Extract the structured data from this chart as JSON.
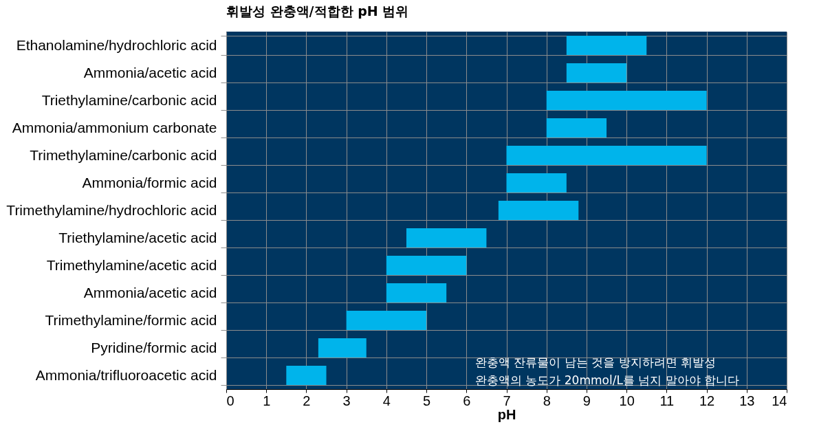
{
  "chart_data": {
    "type": "bar",
    "orientation": "horizontal",
    "title": "휘발성 완충액/적합한 pH 범위",
    "xlabel": "pH",
    "categories": [
      "Ethanolamine/hydrochloric acid",
      "Ammonia/acetic acid",
      "Triethylamine/carbonic acid",
      "Ammonia/ammonium carbonate",
      "Trimethylamine/carbonic acid",
      "Ammonia/formic acid",
      "Trimethylamine/hydrochloric acid",
      "Triethylamine/acetic acid",
      "Trimethylamine/acetic acid",
      "Ammonia/acetic acid ",
      "Trimethylamine/formic acid",
      "Pyridine/formic acid",
      "Ammonia/trifluoroacetic acid"
    ],
    "base": [
      8.5,
      8.5,
      8,
      8,
      7,
      7,
      6.8,
      4.5,
      4,
      4,
      3,
      2.3,
      1.5
    ],
    "values": [
      2,
      1.5,
      4,
      1.5,
      5,
      1.5,
      2,
      2,
      2,
      1.5,
      2,
      1.2,
      1
    ],
    "color": "#00b4eb",
    "xlim": [
      0,
      14
    ],
    "xticks": [
      0,
      1,
      2,
      3,
      4,
      5,
      6,
      7,
      8,
      9,
      10,
      11,
      12,
      13,
      14
    ],
    "grid": true,
    "annotations": [
      " 완충액 잔류물이 남는 것을 방지하려면 휘발성\n완충액의 농도가 20mmol/L를 넘지 말아야 합니다"
    ]
  }
}
